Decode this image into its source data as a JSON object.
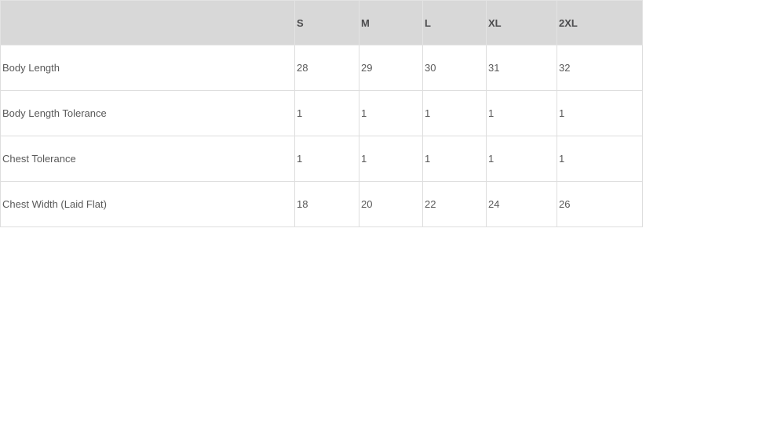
{
  "page": {
    "background_color": "#ffffff"
  },
  "table": {
    "name": "size-chart",
    "header_bg_color": "#d8d8d8",
    "border_color": "#dedede",
    "header_text_color": "#4d4d4f",
    "body_text_color": "#595959",
    "header": [
      "",
      "S",
      "M",
      "L",
      "XL",
      "2XL"
    ],
    "rows": [
      {
        "label": "Body Length",
        "values": [
          "28",
          "29",
          "30",
          "31",
          "32"
        ]
      },
      {
        "label": "Body Length Tolerance",
        "values": [
          "1",
          "1",
          "1",
          "1",
          "1"
        ]
      },
      {
        "label": "Chest Tolerance",
        "values": [
          "1",
          "1",
          "1",
          "1",
          "1"
        ]
      },
      {
        "label": "Chest Width (Laid Flat)",
        "values": [
          "18",
          "20",
          "22",
          "24",
          "26"
        ]
      }
    ]
  },
  "chart_data": {
    "type": "table",
    "title": "",
    "columns": [
      "S",
      "M",
      "L",
      "XL",
      "2XL"
    ],
    "rows": [
      {
        "label": "Body Length",
        "values": [
          28,
          29,
          30,
          31,
          32
        ]
      },
      {
        "label": "Body Length Tolerance",
        "values": [
          1,
          1,
          1,
          1,
          1
        ]
      },
      {
        "label": "Chest Tolerance",
        "values": [
          1,
          1,
          1,
          1,
          1
        ]
      },
      {
        "label": "Chest Width (Laid Flat)",
        "values": [
          18,
          20,
          22,
          24,
          26
        ]
      }
    ]
  }
}
